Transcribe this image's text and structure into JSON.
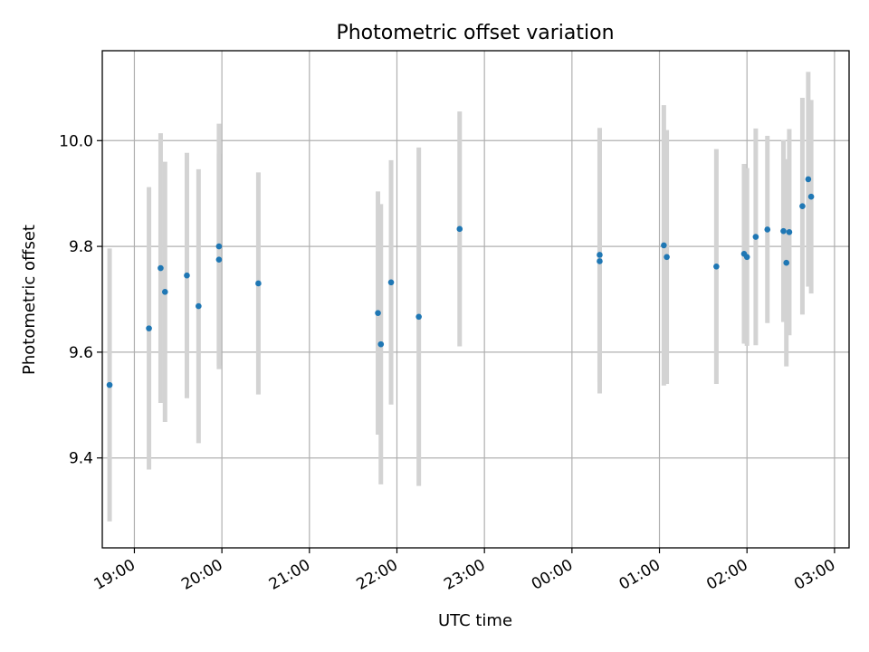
{
  "chart_data": {
    "type": "scatter",
    "title": "Photometric offset variation",
    "xlabel": "UTC time",
    "ylabel": "Photometric offset",
    "grid": true,
    "x_ticks": [
      "19:00",
      "20:00",
      "21:00",
      "22:00",
      "23:00",
      "00:00",
      "01:00",
      "02:00",
      "03:00"
    ],
    "y_ticks": [
      "9.4",
      "9.6",
      "9.8",
      "10.0"
    ],
    "xlim": [
      "18:38",
      "03:10"
    ],
    "ylim": [
      9.23,
      10.17
    ],
    "colors": {
      "marker": "#1f77b4",
      "errorbar": "#d3d3d3"
    },
    "points": [
      {
        "time": "18:43",
        "y": 9.538,
        "yerr": 0.258
      },
      {
        "time": "19:10",
        "y": 9.645,
        "yerr": 0.267
      },
      {
        "time": "19:18",
        "y": 9.759,
        "yerr": 0.255
      },
      {
        "time": "19:21",
        "y": 9.714,
        "yerr": 0.246
      },
      {
        "time": "19:36",
        "y": 9.745,
        "yerr": 0.232
      },
      {
        "time": "19:44",
        "y": 9.687,
        "yerr": 0.259
      },
      {
        "time": "19:58",
        "y": 9.8,
        "yerr": 0.232
      },
      {
        "time": "19:58",
        "y": 9.775,
        "yerr": 0.2
      },
      {
        "time": "20:25",
        "y": 9.73,
        "yerr": 0.21
      },
      {
        "time": "21:47",
        "y": 9.674,
        "yerr": 0.23
      },
      {
        "time": "21:49",
        "y": 9.615,
        "yerr": 0.265
      },
      {
        "time": "21:56",
        "y": 9.732,
        "yerr": 0.231
      },
      {
        "time": "22:15",
        "y": 9.667,
        "yerr": 0.32
      },
      {
        "time": "22:43",
        "y": 9.833,
        "yerr": 0.222
      },
      {
        "time": "00:19",
        "y": 9.784,
        "yerr": 0.24
      },
      {
        "time": "00:19",
        "y": 9.772,
        "yerr": 0.25
      },
      {
        "time": "01:03",
        "y": 9.802,
        "yerr": 0.265
      },
      {
        "time": "01:05",
        "y": 9.78,
        "yerr": 0.24
      },
      {
        "time": "01:39",
        "y": 9.762,
        "yerr": 0.222
      },
      {
        "time": "01:58",
        "y": 9.786,
        "yerr": 0.17
      },
      {
        "time": "02:00",
        "y": 9.78,
        "yerr": 0.168
      },
      {
        "time": "02:06",
        "y": 9.818,
        "yerr": 0.205
      },
      {
        "time": "02:14",
        "y": 9.832,
        "yerr": 0.177
      },
      {
        "time": "02:25",
        "y": 9.829,
        "yerr": 0.172
      },
      {
        "time": "02:27",
        "y": 9.769,
        "yerr": 0.196
      },
      {
        "time": "02:29",
        "y": 9.827,
        "yerr": 0.195
      },
      {
        "time": "02:38",
        "y": 9.876,
        "yerr": 0.205
      },
      {
        "time": "02:42",
        "y": 9.927,
        "yerr": 0.203
      },
      {
        "time": "02:44",
        "y": 9.894,
        "yerr": 0.183
      }
    ]
  }
}
